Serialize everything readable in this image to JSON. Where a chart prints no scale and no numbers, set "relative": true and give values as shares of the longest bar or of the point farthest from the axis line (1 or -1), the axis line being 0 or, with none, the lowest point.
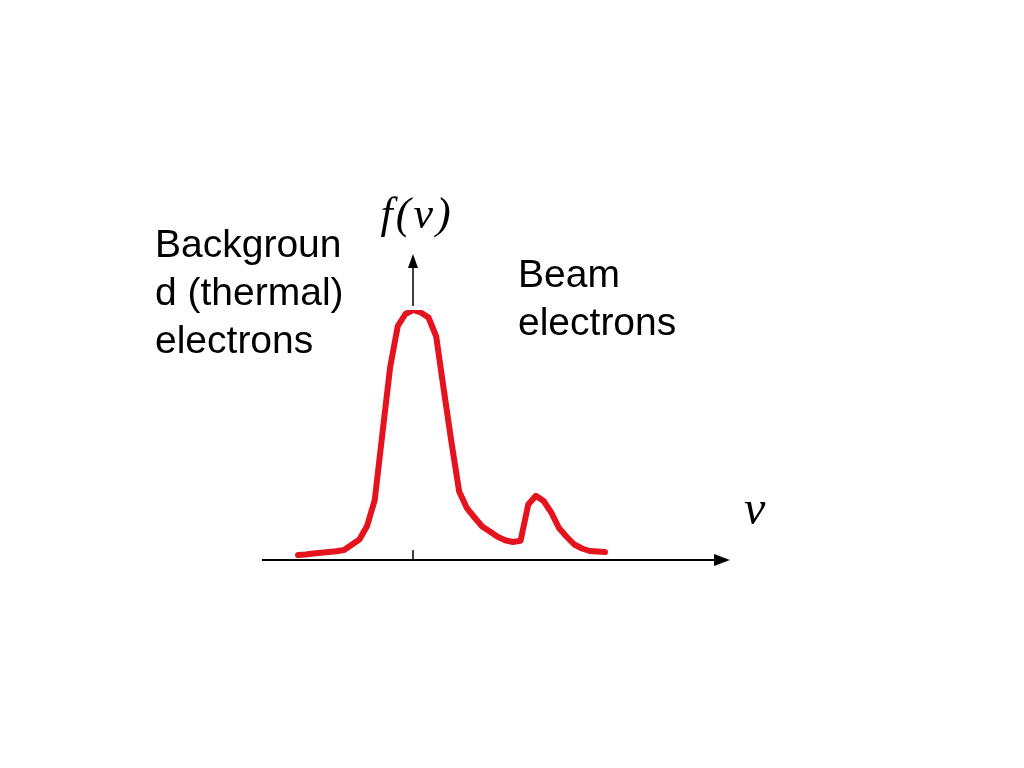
{
  "chart_data": {
    "type": "line",
    "xlabel": "v",
    "ylabel": "f(v)",
    "annotations": [
      "Background (thermal) electrons",
      "Beam electrons"
    ],
    "categories": [
      null,
      null,
      null,
      null,
      null,
      null,
      null,
      null,
      null,
      null,
      null,
      null,
      null,
      null,
      null,
      null,
      null,
      null,
      null,
      null,
      null,
      null,
      null,
      null,
      null,
      null,
      null,
      null,
      null,
      null,
      null,
      null,
      null,
      null,
      null,
      null,
      null,
      null,
      null,
      null,
      null
    ],
    "series": [
      {
        "color": "#e5131d",
        "values": [
          0.02,
          0.022,
          0.026,
          0.029,
          0.032,
          0.035,
          0.04,
          0.061,
          0.082,
          0.136,
          0.24,
          0.506,
          0.77,
          0.936,
          0.984,
          1,
          0.99,
          0.97,
          0.895,
          0.68,
          0.47,
          0.274,
          0.208,
          0.17,
          0.134,
          0.114,
          0.093,
          0.079,
          0.072,
          0.077,
          0.222,
          0.257,
          0.236,
          0.19,
          0.128,
          0.093,
          0.062,
          0.046,
          0.036,
          0.034,
          0.032
        ]
      }
    ],
    "relative": true,
    "marker": "none",
    "line_style": "solid"
  }
}
